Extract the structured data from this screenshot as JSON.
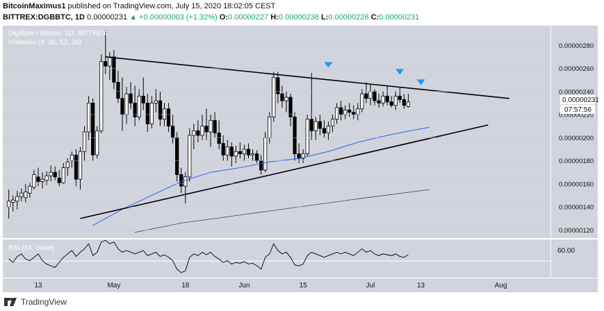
{
  "header": {
    "author": "BitcoinMaximus1",
    "published_text": "published on TradingView.com, July 15, 2020 18:02:05 CEST",
    "symbol": "BITTREX:DGBBTC, 1D",
    "last": "0.00000231",
    "change": "+0.00000003 (+1.32%)",
    "o_label": "O:",
    "o": "0.00000227",
    "h_label": "H:",
    "h": "0.00000238",
    "l_label": "L:",
    "l": "0.00000226",
    "c_label": "C:",
    "c": "0.00000231"
  },
  "footer": {
    "brand": "TradingView"
  },
  "colors": {
    "plot_bg": "#d1d4dc",
    "candle": "#ffffff",
    "wick": "#000000",
    "ma_fast": "#2962ff",
    "ma_slow": "#444444",
    "trendline": "#000000",
    "marker": "#2196f3",
    "rsi": "#000000"
  },
  "chart_data": {
    "type": "candlestick",
    "title": "DigiByte / Bitcoin, 1D, BITTREX",
    "indicator_label": "Ichimoku (9, 26, 52, 26)",
    "price_tick_labels": [
      "0.00000280",
      "0.00000260",
      "0.00000240",
      "0.00000220",
      "0.00000200",
      "0.00000180",
      "0.00000160",
      "0.00000140",
      "0.00000120"
    ],
    "price_ticks": [
      2.8,
      2.6,
      2.4,
      2.2,
      2.0,
      1.8,
      1.6,
      1.4,
      1.2
    ],
    "price_unit_note": "values below in 1e-6 BTC",
    "ylim": [
      1.13,
      2.97
    ],
    "price_label": "0.00000231",
    "countdown_label": "07:57:56",
    "x_tick_labels": [
      "13",
      "May",
      "18",
      "Jun",
      "15",
      "Jul",
      "13",
      "Aug"
    ],
    "x_ticks": [
      "2020-04-13",
      "2020-05-01",
      "2020-05-18",
      "2020-06-01",
      "2020-06-15",
      "2020-07-01",
      "2020-07-13",
      "2020-08-01"
    ],
    "candles_from": "2020-04-06",
    "candles_to": "2020-07-15",
    "candles": [
      {
        "o": 1.4,
        "h": 1.55,
        "l": 1.3,
        "c": 1.45
      },
      {
        "o": 1.44,
        "h": 1.5,
        "l": 1.36,
        "c": 1.46
      },
      {
        "o": 1.45,
        "h": 1.54,
        "l": 1.38,
        "c": 1.49
      },
      {
        "o": 1.49,
        "h": 1.56,
        "l": 1.45,
        "c": 1.52
      },
      {
        "o": 1.48,
        "h": 1.6,
        "l": 1.44,
        "c": 1.53
      },
      {
        "o": 1.52,
        "h": 1.61,
        "l": 1.48,
        "c": 1.58
      },
      {
        "o": 1.57,
        "h": 1.72,
        "l": 1.55,
        "c": 1.68
      },
      {
        "o": 1.66,
        "h": 1.74,
        "l": 1.58,
        "c": 1.62
      },
      {
        "o": 1.62,
        "h": 1.7,
        "l": 1.56,
        "c": 1.64
      },
      {
        "o": 1.63,
        "h": 1.71,
        "l": 1.59,
        "c": 1.67
      },
      {
        "o": 1.67,
        "h": 1.76,
        "l": 1.62,
        "c": 1.7
      },
      {
        "o": 1.7,
        "h": 1.75,
        "l": 1.63,
        "c": 1.66
      },
      {
        "o": 1.65,
        "h": 1.72,
        "l": 1.58,
        "c": 1.61
      },
      {
        "o": 1.61,
        "h": 1.78,
        "l": 1.6,
        "c": 1.74
      },
      {
        "o": 1.74,
        "h": 1.82,
        "l": 1.67,
        "c": 1.79
      },
      {
        "o": 1.8,
        "h": 1.88,
        "l": 1.74,
        "c": 1.85
      },
      {
        "o": 1.85,
        "h": 1.9,
        "l": 1.58,
        "c": 1.64
      },
      {
        "o": 1.64,
        "h": 1.92,
        "l": 1.55,
        "c": 1.88
      },
      {
        "o": 1.88,
        "h": 2.1,
        "l": 1.8,
        "c": 2.05
      },
      {
        "o": 2.05,
        "h": 2.36,
        "l": 1.98,
        "c": 2.3
      },
      {
        "o": 2.3,
        "h": 2.34,
        "l": 1.8,
        "c": 1.85
      },
      {
        "o": 1.85,
        "h": 2.1,
        "l": 1.82,
        "c": 2.06
      },
      {
        "o": 2.06,
        "h": 2.72,
        "l": 2.04,
        "c": 2.66
      },
      {
        "o": 2.66,
        "h": 2.93,
        "l": 2.55,
        "c": 2.62
      },
      {
        "o": 2.62,
        "h": 2.74,
        "l": 2.5,
        "c": 2.7
      },
      {
        "o": 2.7,
        "h": 2.76,
        "l": 2.42,
        "c": 2.48
      },
      {
        "o": 2.48,
        "h": 2.58,
        "l": 2.3,
        "c": 2.34
      },
      {
        "o": 2.34,
        "h": 2.52,
        "l": 2.06,
        "c": 2.2
      },
      {
        "o": 2.2,
        "h": 2.44,
        "l": 2.12,
        "c": 2.38
      },
      {
        "o": 2.38,
        "h": 2.48,
        "l": 2.25,
        "c": 2.3
      },
      {
        "o": 2.3,
        "h": 2.45,
        "l": 2.1,
        "c": 2.18
      },
      {
        "o": 2.18,
        "h": 2.42,
        "l": 2.15,
        "c": 2.36
      },
      {
        "o": 2.36,
        "h": 2.52,
        "l": 2.24,
        "c": 2.3
      },
      {
        "o": 2.3,
        "h": 2.38,
        "l": 2.05,
        "c": 2.12
      },
      {
        "o": 2.12,
        "h": 2.36,
        "l": 2.08,
        "c": 2.3
      },
      {
        "o": 2.3,
        "h": 2.42,
        "l": 2.22,
        "c": 2.32
      },
      {
        "o": 2.32,
        "h": 2.4,
        "l": 2.1,
        "c": 2.16
      },
      {
        "o": 2.16,
        "h": 2.3,
        "l": 2.1,
        "c": 2.25
      },
      {
        "o": 2.25,
        "h": 2.3,
        "l": 2.05,
        "c": 2.1
      },
      {
        "o": 2.1,
        "h": 2.2,
        "l": 1.95,
        "c": 2.0
      },
      {
        "o": 2.0,
        "h": 2.05,
        "l": 1.62,
        "c": 1.68
      },
      {
        "o": 1.68,
        "h": 1.74,
        "l": 1.52,
        "c": 1.58
      },
      {
        "o": 1.58,
        "h": 1.7,
        "l": 1.43,
        "c": 1.66
      },
      {
        "o": 1.66,
        "h": 2.08,
        "l": 1.62,
        "c": 2.02
      },
      {
        "o": 2.02,
        "h": 2.12,
        "l": 1.9,
        "c": 2.06
      },
      {
        "o": 2.06,
        "h": 2.15,
        "l": 1.96,
        "c": 2.02
      },
      {
        "o": 2.02,
        "h": 2.2,
        "l": 1.98,
        "c": 2.1
      },
      {
        "o": 2.1,
        "h": 2.25,
        "l": 1.98,
        "c": 2.05
      },
      {
        "o": 2.05,
        "h": 2.2,
        "l": 1.92,
        "c": 2.15
      },
      {
        "o": 2.15,
        "h": 2.22,
        "l": 2.0,
        "c": 2.04
      },
      {
        "o": 2.04,
        "h": 2.15,
        "l": 1.9,
        "c": 1.95
      },
      {
        "o": 1.95,
        "h": 2.02,
        "l": 1.8,
        "c": 1.85
      },
      {
        "o": 1.85,
        "h": 1.98,
        "l": 1.8,
        "c": 1.92
      },
      {
        "o": 1.92,
        "h": 1.96,
        "l": 1.75,
        "c": 1.84
      },
      {
        "o": 1.84,
        "h": 1.93,
        "l": 1.78,
        "c": 1.88
      },
      {
        "o": 1.88,
        "h": 1.96,
        "l": 1.82,
        "c": 1.86
      },
      {
        "o": 1.86,
        "h": 1.94,
        "l": 1.8,
        "c": 1.9
      },
      {
        "o": 1.9,
        "h": 1.95,
        "l": 1.82,
        "c": 1.85
      },
      {
        "o": 1.85,
        "h": 1.9,
        "l": 1.8,
        "c": 1.86
      },
      {
        "o": 1.86,
        "h": 1.89,
        "l": 1.78,
        "c": 1.8
      },
      {
        "o": 1.8,
        "h": 1.85,
        "l": 1.68,
        "c": 1.72
      },
      {
        "o": 1.72,
        "h": 2.05,
        "l": 1.7,
        "c": 2.0
      },
      {
        "o": 2.0,
        "h": 2.22,
        "l": 1.95,
        "c": 2.18
      },
      {
        "o": 2.18,
        "h": 2.57,
        "l": 2.14,
        "c": 2.52
      },
      {
        "o": 2.52,
        "h": 2.57,
        "l": 2.3,
        "c": 2.38
      },
      {
        "o": 2.38,
        "h": 2.45,
        "l": 2.26,
        "c": 2.32
      },
      {
        "o": 2.32,
        "h": 2.4,
        "l": 2.22,
        "c": 2.35
      },
      {
        "o": 2.35,
        "h": 2.38,
        "l": 2.1,
        "c": 2.18
      },
      {
        "o": 2.18,
        "h": 2.22,
        "l": 1.8,
        "c": 1.86
      },
      {
        "o": 1.86,
        "h": 1.95,
        "l": 1.78,
        "c": 1.82
      },
      {
        "o": 1.82,
        "h": 1.9,
        "l": 1.78,
        "c": 1.86
      },
      {
        "o": 1.86,
        "h": 2.2,
        "l": 1.84,
        "c": 2.16
      },
      {
        "o": 2.16,
        "h": 2.56,
        "l": 1.98,
        "c": 2.06
      },
      {
        "o": 2.06,
        "h": 2.18,
        "l": 1.98,
        "c": 2.14
      },
      {
        "o": 2.14,
        "h": 2.2,
        "l": 2.02,
        "c": 2.08
      },
      {
        "o": 2.08,
        "h": 2.15,
        "l": 2.0,
        "c": 2.04
      },
      {
        "o": 2.04,
        "h": 2.14,
        "l": 1.98,
        "c": 2.1
      },
      {
        "o": 2.1,
        "h": 2.2,
        "l": 2.05,
        "c": 2.16
      },
      {
        "o": 2.16,
        "h": 2.3,
        "l": 2.12,
        "c": 2.26
      },
      {
        "o": 2.26,
        "h": 2.32,
        "l": 2.15,
        "c": 2.2
      },
      {
        "o": 2.2,
        "h": 2.28,
        "l": 2.16,
        "c": 2.24
      },
      {
        "o": 2.24,
        "h": 2.3,
        "l": 2.18,
        "c": 2.22
      },
      {
        "o": 2.22,
        "h": 2.28,
        "l": 2.16,
        "c": 2.2
      },
      {
        "o": 2.2,
        "h": 2.3,
        "l": 2.15,
        "c": 2.25
      },
      {
        "o": 2.25,
        "h": 2.42,
        "l": 2.22,
        "c": 2.38
      },
      {
        "o": 2.38,
        "h": 2.48,
        "l": 2.3,
        "c": 2.34
      },
      {
        "o": 2.34,
        "h": 2.46,
        "l": 2.28,
        "c": 2.4
      },
      {
        "o": 2.4,
        "h": 2.42,
        "l": 2.28,
        "c": 2.32
      },
      {
        "o": 2.32,
        "h": 2.38,
        "l": 2.26,
        "c": 2.3
      },
      {
        "o": 2.3,
        "h": 2.4,
        "l": 2.27,
        "c": 2.36
      },
      {
        "o": 2.36,
        "h": 2.45,
        "l": 2.28,
        "c": 2.31
      },
      {
        "o": 2.31,
        "h": 2.36,
        "l": 2.26,
        "c": 2.28
      },
      {
        "o": 2.28,
        "h": 2.4,
        "l": 2.24,
        "c": 2.36
      },
      {
        "o": 2.36,
        "h": 2.44,
        "l": 2.3,
        "c": 2.33
      },
      {
        "o": 2.33,
        "h": 2.38,
        "l": 2.25,
        "c": 2.28
      },
      {
        "o": 2.27,
        "h": 2.38,
        "l": 2.26,
        "c": 2.31
      }
    ],
    "ma_fast": {
      "name": "",
      "dates": [
        "2020-04-26",
        "2020-05-03",
        "2020-05-10",
        "2020-05-17",
        "2020-05-24",
        "2020-05-31",
        "2020-06-07",
        "2020-06-14",
        "2020-06-21",
        "2020-06-28",
        "2020-07-05",
        "2020-07-12",
        "2020-07-15"
      ],
      "values": [
        1.24,
        1.38,
        1.5,
        1.62,
        1.7,
        1.74,
        1.79,
        1.82,
        1.88,
        1.96,
        2.02,
        2.07,
        2.09
      ]
    },
    "ma_slow": {
      "name": "",
      "dates": [
        "2020-05-06",
        "2020-05-17",
        "2020-05-31",
        "2020-06-14",
        "2020-06-28",
        "2020-07-15"
      ],
      "values": [
        1.18,
        1.26,
        1.33,
        1.4,
        1.47,
        1.55
      ]
    },
    "trendlines": [
      {
        "from": {
          "date": "2020-04-29",
          "price": 2.7
        },
        "to": {
          "date": "2020-08-03",
          "price": 2.34
        }
      },
      {
        "from": {
          "date": "2020-04-23",
          "price": 1.3
        },
        "to": {
          "date": "2020-07-29",
          "price": 2.11
        }
      }
    ],
    "markers": [
      {
        "date": "2020-06-21",
        "price": 2.63
      },
      {
        "date": "2020-07-08",
        "price": 2.57
      },
      {
        "date": "2020-07-13",
        "price": 2.48
      }
    ],
    "rsi": {
      "label": "RSI (14, close)",
      "tick_label": "60.00",
      "level": 60,
      "ylim": [
        30,
        75
      ],
      "from": "2020-04-06",
      "values": [
        52,
        48,
        55,
        58,
        52,
        50,
        54,
        58,
        50,
        46,
        44,
        42,
        48,
        54,
        58,
        62,
        55,
        60,
        64,
        70,
        56,
        60,
        72,
        74,
        70,
        72,
        64,
        60,
        62,
        60,
        58,
        60,
        62,
        56,
        58,
        60,
        55,
        57,
        54,
        50,
        40,
        36,
        38,
        54,
        58,
        56,
        60,
        57,
        60,
        55,
        52,
        48,
        50,
        46,
        48,
        47,
        49,
        46,
        47,
        44,
        40,
        54,
        58,
        70,
        62,
        58,
        60,
        54,
        45,
        44,
        46,
        56,
        60,
        58,
        56,
        54,
        56,
        58,
        60,
        58,
        60,
        58,
        56,
        60,
        64,
        60,
        62,
        58,
        56,
        58,
        57,
        56,
        58,
        55,
        54,
        57
      ]
    }
  }
}
